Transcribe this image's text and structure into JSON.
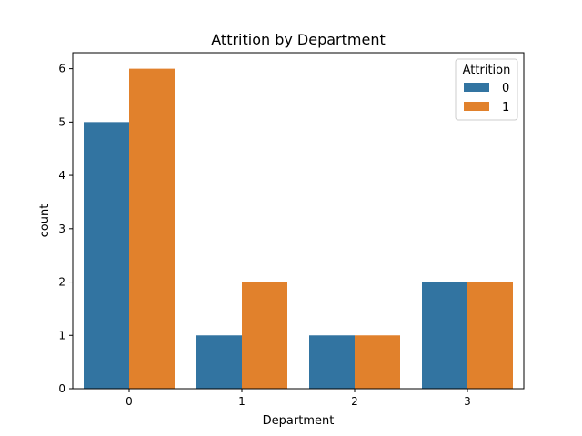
{
  "chart_data": {
    "type": "bar",
    "title": "Attrition by Department",
    "xlabel": "Department",
    "ylabel": "count",
    "categories": [
      "0",
      "1",
      "2",
      "3"
    ],
    "series": [
      {
        "name": "0",
        "values": [
          5,
          1,
          1,
          2
        ],
        "color": "#3274a1"
      },
      {
        "name": "1",
        "values": [
          6,
          2,
          1,
          2
        ],
        "color": "#e1812c"
      }
    ],
    "yticks": [
      0,
      1,
      2,
      3,
      4,
      5,
      6
    ],
    "ylim": [
      0,
      6.3
    ],
    "legend": {
      "title": "Attrition",
      "placement": "top-right"
    },
    "grid": false
  }
}
